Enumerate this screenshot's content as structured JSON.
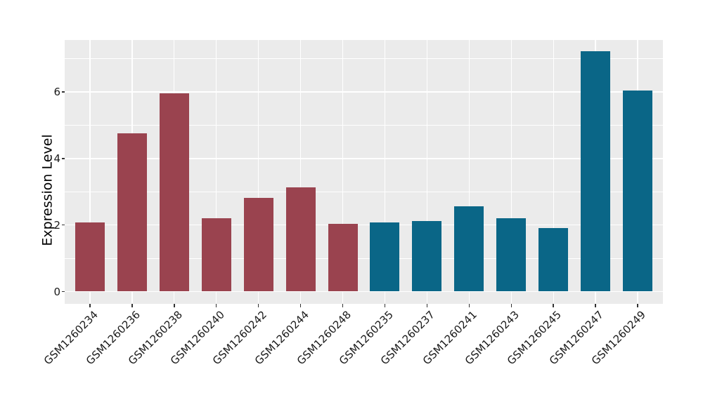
{
  "chart_data": {
    "type": "bar",
    "title": "",
    "xlabel": "",
    "ylabel": "Expression Level",
    "categories": [
      "GSM1260234",
      "GSM1260236",
      "GSM1260238",
      "GSM1260240",
      "GSM1260242",
      "GSM1260244",
      "GSM1260248",
      "GSM1260235",
      "GSM1260237",
      "GSM1260241",
      "GSM1260243",
      "GSM1260245",
      "GSM1260247",
      "GSM1260249"
    ],
    "values": [
      2.07,
      4.76,
      5.97,
      2.21,
      2.82,
      3.14,
      2.04,
      2.08,
      2.12,
      2.57,
      2.2,
      1.9,
      7.22,
      6.05
    ],
    "bar_colors": [
      "#9a434f",
      "#9a434f",
      "#9a434f",
      "#9a434f",
      "#9a434f",
      "#9a434f",
      "#9a434f",
      "#0a6687",
      "#0a6687",
      "#0a6687",
      "#0a6687",
      "#0a6687",
      "#0a6687",
      "#0a6687"
    ],
    "group_colors": {
      "left_group": "#9a434f",
      "right_group": "#0a6687"
    },
    "ylim": [
      0,
      7.6
    ],
    "yticks": [
      0,
      2,
      4,
      6
    ],
    "ytick_labels": [
      "0",
      "2",
      "4",
      "6"
    ],
    "minor_gridlines": [
      1,
      3,
      5,
      7
    ],
    "panel_background": "#ebebeb",
    "gridline_color": "#ffffff",
    "axis_text_color": "#1a1a1a",
    "tick_mark_color": "#333333",
    "x_tick_rotation_deg": 45,
    "grid": "on",
    "legend": "none"
  }
}
